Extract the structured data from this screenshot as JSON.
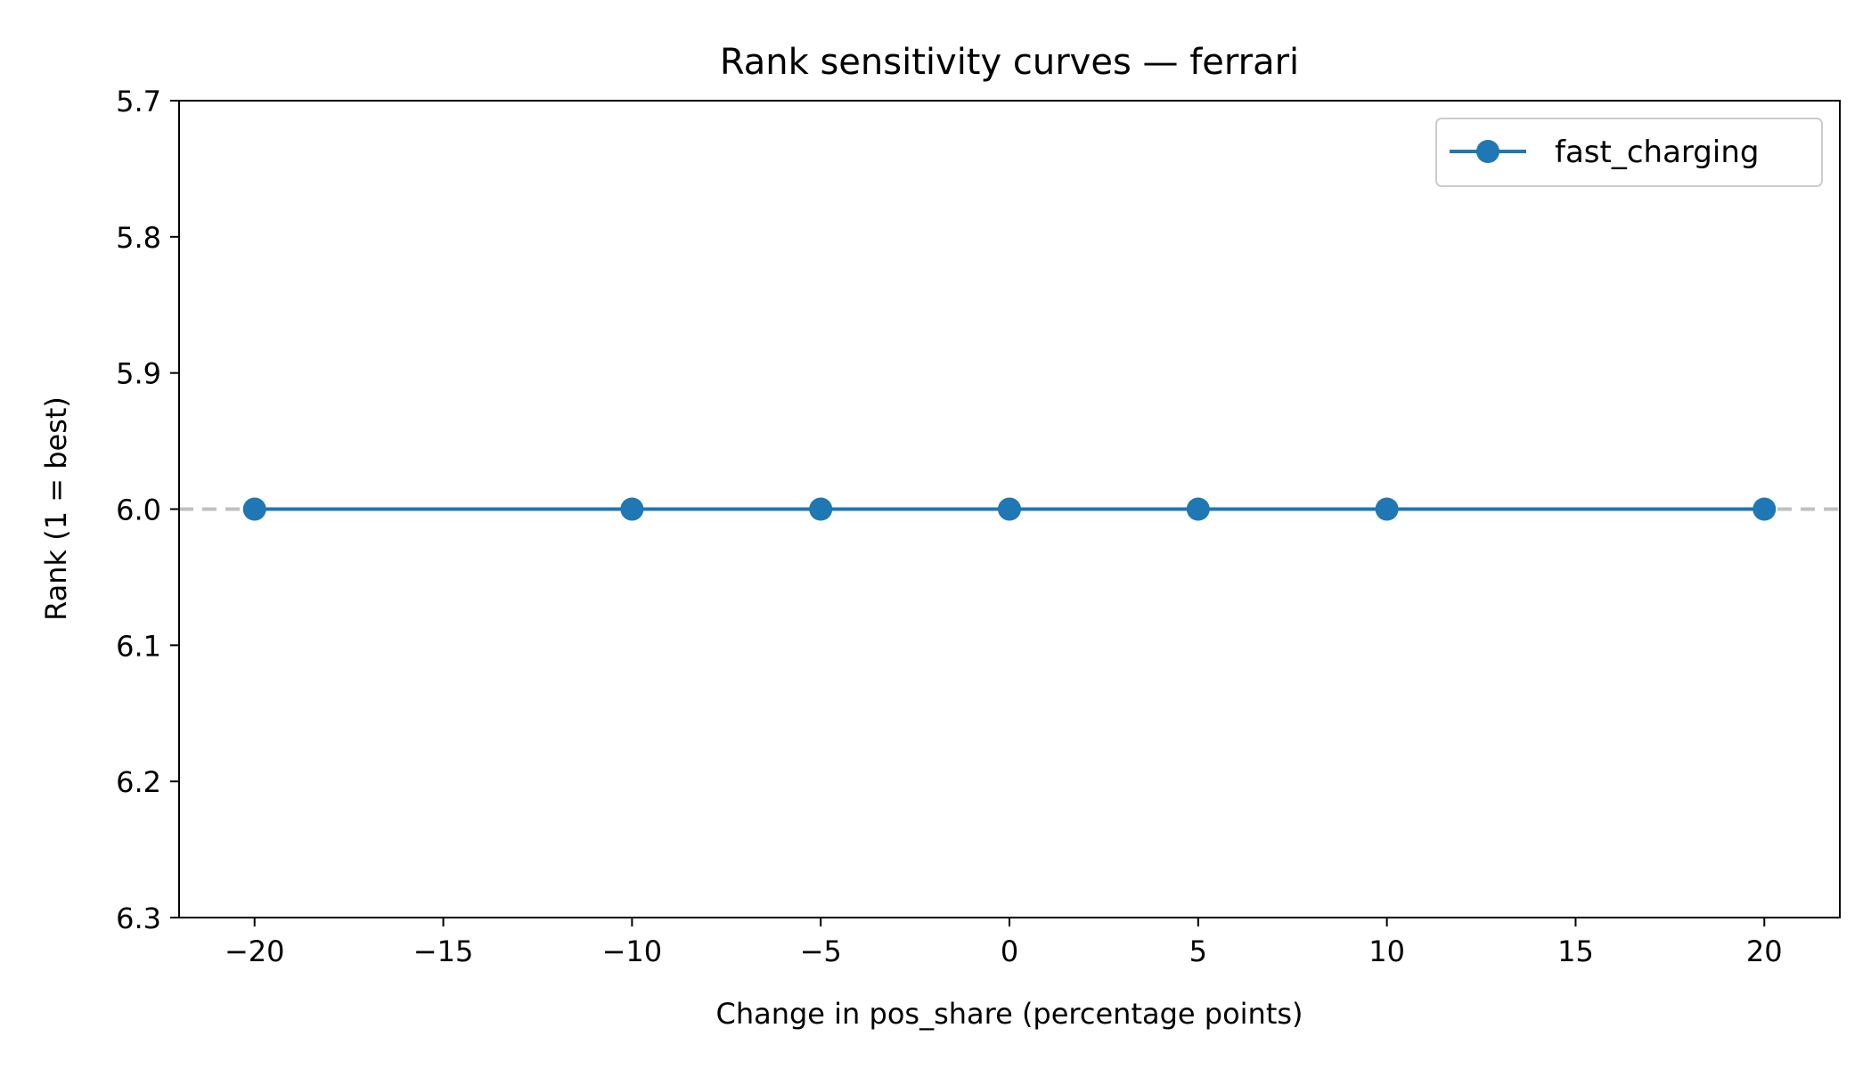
{
  "chart_data": {
    "type": "line",
    "title": "Rank sensitivity curves — ferrari",
    "xlabel": "Change in pos_share (percentage points)",
    "ylabel": "Rank (1 = best)",
    "xlim": [
      -22,
      22
    ],
    "ylim": [
      6.3,
      5.7
    ],
    "y_inverted": true,
    "xticks": [
      -20,
      -15,
      -10,
      -5,
      0,
      5,
      10,
      15,
      20
    ],
    "xtick_labels": [
      "−20",
      "−15",
      "−10",
      "−5",
      "0",
      "5",
      "10",
      "15",
      "20"
    ],
    "yticks": [
      5.7,
      5.8,
      5.9,
      6.0,
      6.1,
      6.2,
      6.3
    ],
    "ytick_labels": [
      "5.7",
      "5.8",
      "5.9",
      "6.0",
      "6.1",
      "6.2",
      "6.3"
    ],
    "grid": false,
    "legend_position": "top-right",
    "reference_line": {
      "y": 6.0,
      "style": "dashed",
      "color": "#c0c0c0"
    },
    "series": [
      {
        "name": "fast_charging",
        "color": "#1f77b4",
        "marker": "circle",
        "x": [
          -20,
          -10,
          -5,
          0,
          5,
          10,
          20
        ],
        "y": [
          6,
          6,
          6,
          6,
          6,
          6,
          6
        ]
      }
    ]
  }
}
